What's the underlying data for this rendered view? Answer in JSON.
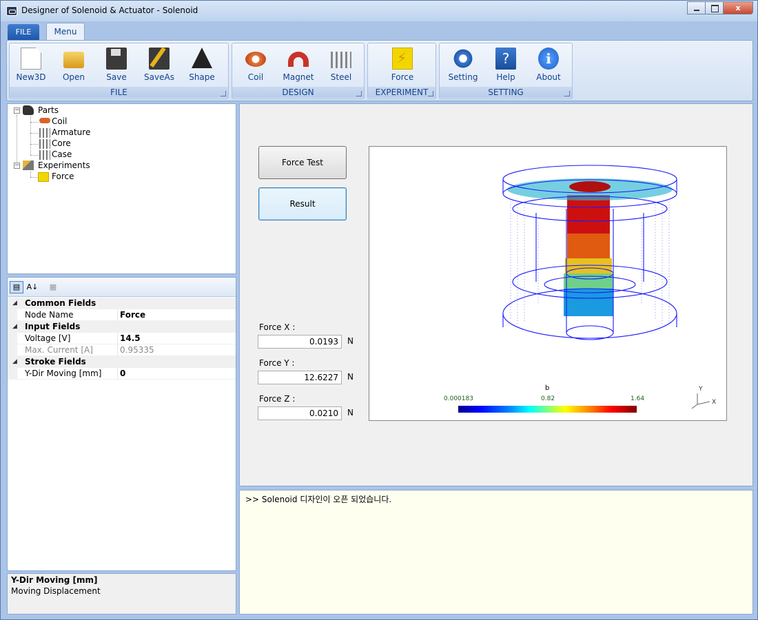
{
  "window": {
    "title": "Designer of Solenoid & Actuator - Solenoid",
    "controls": {
      "minimize": "",
      "maximize": "",
      "close": "x"
    }
  },
  "ribbon": {
    "tabs": {
      "file": "FILE",
      "menu": "Menu"
    },
    "groups": [
      {
        "label": "FILE",
        "buttons": [
          {
            "label": "New3D",
            "icon": "new-document-icon"
          },
          {
            "label": "Open",
            "icon": "open-folder-icon"
          },
          {
            "label": "Save",
            "icon": "save-disk-icon"
          },
          {
            "label": "SaveAs",
            "icon": "save-as-icon"
          },
          {
            "label": "Shape",
            "icon": "shape-triangle-icon"
          }
        ]
      },
      {
        "label": "DESIGN",
        "buttons": [
          {
            "label": "Coil",
            "icon": "coil-icon"
          },
          {
            "label": "Magnet",
            "icon": "magnet-icon"
          },
          {
            "label": "Steel",
            "icon": "steel-icon"
          }
        ]
      },
      {
        "label": "EXPERIMENT",
        "buttons": [
          {
            "label": "Force",
            "icon": "force-lightning-icon"
          }
        ]
      },
      {
        "label": "SETTING",
        "buttons": [
          {
            "label": "Setting",
            "icon": "gear-icon"
          },
          {
            "label": "Help",
            "icon": "help-book-icon"
          },
          {
            "label": "About",
            "icon": "info-icon"
          }
        ]
      }
    ],
    "help_glyph": "?",
    "about_glyph": "i"
  },
  "tree": {
    "parts": {
      "label": "Parts",
      "children": [
        "Coil",
        "Armature",
        "Core",
        "Case"
      ]
    },
    "experiments": {
      "label": "Experiments",
      "children": [
        "Force"
      ]
    },
    "collapse_glyph": "−"
  },
  "properties": {
    "toolbar": {
      "categorized": "▤",
      "alphabetical": "A↓",
      "pages": "▦"
    },
    "categories": [
      {
        "name": "Common Fields",
        "rows": [
          {
            "name": "Node Name",
            "value": "Force",
            "dim": false
          }
        ]
      },
      {
        "name": "Input Fields",
        "rows": [
          {
            "name": "Voltage [V]",
            "value": "14.5",
            "dim": false
          },
          {
            "name": "Max. Current [A]",
            "value": "0.95335",
            "dim": true
          }
        ]
      },
      {
        "name": "Stroke Fields",
        "rows": [
          {
            "name": "Y-Dir Moving [mm]",
            "value": "0",
            "dim": false
          }
        ]
      }
    ],
    "description": {
      "title": "Y-Dir Moving [mm]",
      "text": "Moving Displacement"
    }
  },
  "main": {
    "force_test_button": "Force Test",
    "result_button": "Result",
    "forces": [
      {
        "label": "Force X :",
        "value": "0.0193",
        "unit": "N"
      },
      {
        "label": "Force Y :",
        "value": "12.6227",
        "unit": "N"
      },
      {
        "label": "Force Z :",
        "value": "0.0210",
        "unit": "N"
      }
    ],
    "viewport": {
      "legend_title": "b",
      "legend_min": "0.000183",
      "legend_mid": "0.82",
      "legend_max": "1.64",
      "axis_y": "Y",
      "axis_x": "X",
      "colors": {
        "low": "#0000ff",
        "mid": "#ffff00",
        "high": "#ff0000",
        "wire": "#1a1aff"
      }
    }
  },
  "log": {
    "lines": [
      ">> Solenoid 디자인이 오픈 되었습니다."
    ]
  }
}
